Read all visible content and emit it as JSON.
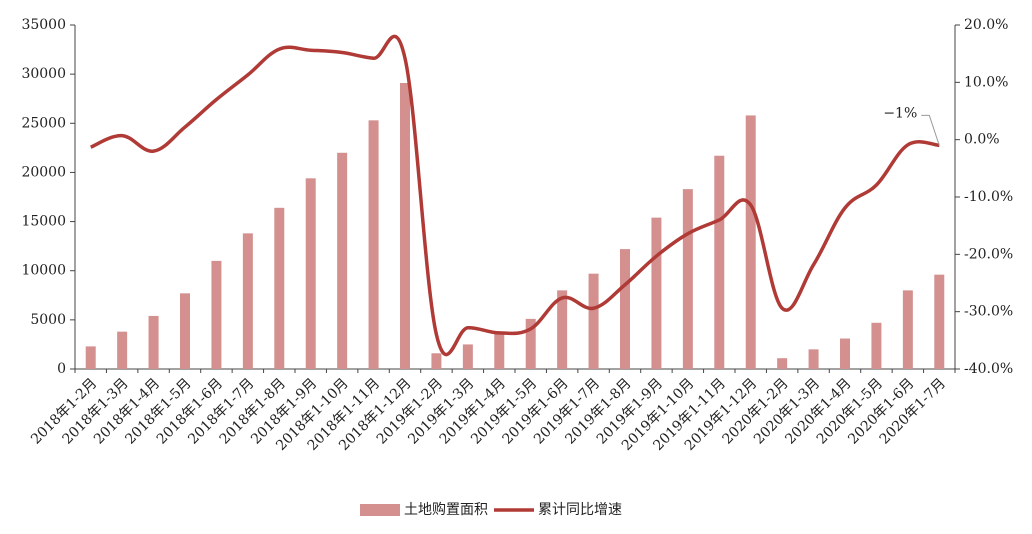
{
  "chart_data": {
    "type": "bar-line",
    "categories": [
      "2018年1-2月",
      "2018年1-3月",
      "2018年1-4月",
      "2018年1-5月",
      "2018年1-6月",
      "2018年1-7月",
      "2018年1-8月",
      "2018年1-9月",
      "2018年1-10月",
      "2018年1-11月",
      "2018年1-12月",
      "2019年1-2月",
      "2019年1-3月",
      "2019年1-4月",
      "2019年1-5月",
      "2019年1-6月",
      "2019年1-7月",
      "2019年1-8月",
      "2019年1-9月",
      "2019年1-10月",
      "2019年1-11月",
      "2019年1-12月",
      "2020年1-2月",
      "2020年1-3月",
      "2020年1-4月",
      "2020年1-5月",
      "2020年1-6月",
      "2020年1-7月"
    ],
    "series": [
      {
        "name": "土地购置面积",
        "color": "#d4908f",
        "type": "bar",
        "values": [
          2300,
          3800,
          5400,
          7700,
          11000,
          13800,
          16400,
          19400,
          22000,
          25300,
          29100,
          1600,
          2500,
          3800,
          5100,
          8000,
          9700,
          12200,
          15400,
          18300,
          21700,
          25800,
          1100,
          2000,
          3100,
          4700,
          8000,
          9600
        ]
      },
      {
        "name": "累计同比增速",
        "color": "#b03a36",
        "type": "line",
        "axis": "y2",
        "values": [
          -1.3,
          0.7,
          -2.0,
          2.2,
          7.0,
          11.3,
          15.8,
          15.6,
          15.2,
          14.2,
          14.2,
          -34.0,
          -32.8,
          -33.7,
          -33.0,
          -27.6,
          -29.4,
          -25.3,
          -20.3,
          -16.4,
          -14.0,
          -11.4,
          -29.4,
          -21.8,
          -11.9,
          -7.9,
          -0.9,
          -1.0
        ]
      }
    ],
    "ylim": [
      0,
      35000
    ],
    "yticks": [
      0,
      5000,
      10000,
      15000,
      20000,
      25000,
      30000,
      35000
    ],
    "y2lim": [
      -40,
      20
    ],
    "y2ticks": [
      {
        "value": -40,
        "label": "-40.0%"
      },
      {
        "value": -30,
        "label": "-30.0%"
      },
      {
        "value": -20,
        "label": "-20.0%"
      },
      {
        "value": -10,
        "label": "-10.0%"
      },
      {
        "value": 0,
        "label": "0.0%"
      },
      {
        "value": 10,
        "label": "10.0%"
      },
      {
        "value": 20,
        "label": "20.0%"
      }
    ],
    "annotations": [
      {
        "text": "−1%",
        "series": 1,
        "index": 27
      }
    ],
    "legend": "bottom"
  }
}
